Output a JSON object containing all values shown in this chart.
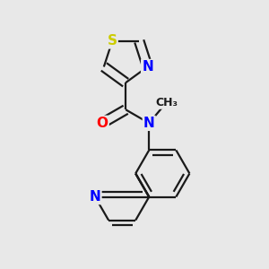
{
  "background_color": "#e8e8e8",
  "bond_color": "#1a1a1a",
  "atom_colors": {
    "S": "#cccc00",
    "N": "#0000ff",
    "O": "#ff0000",
    "C": "#1a1a1a"
  },
  "font_size_atoms": 11,
  "font_size_methyl": 9,
  "lw": 1.6
}
